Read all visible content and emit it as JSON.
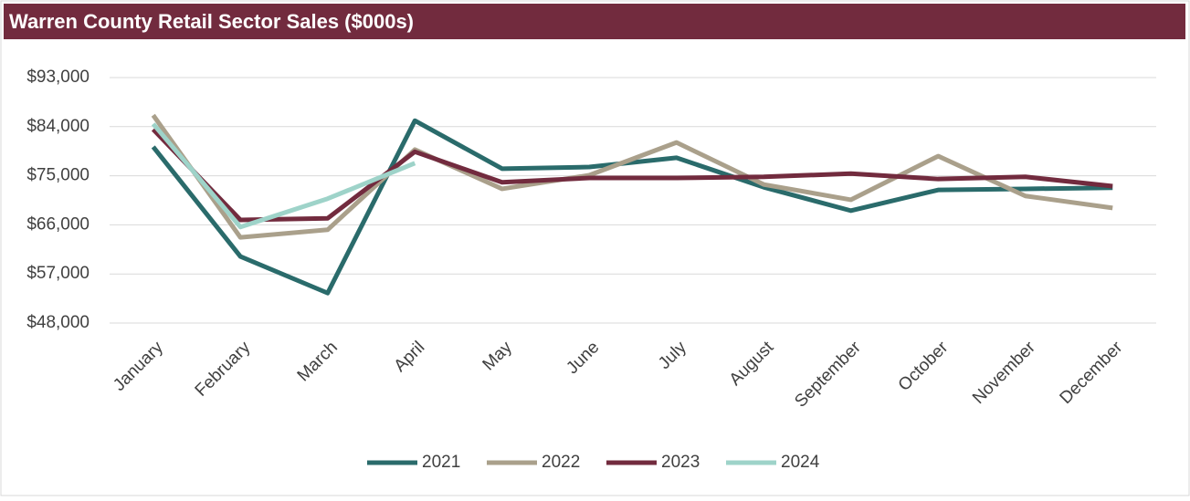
{
  "chart_data": {
    "type": "line",
    "title": "Warren County Retail Sector Sales ($000s)",
    "categories": [
      "January",
      "February",
      "March",
      "April",
      "May",
      "June",
      "July",
      "August",
      "September",
      "October",
      "November",
      "December"
    ],
    "series": [
      {
        "name": "2021",
        "color": "#2a6b6b",
        "values": [
          80300,
          60200,
          53500,
          85100,
          76300,
          76600,
          78300,
          72900,
          68600,
          72400,
          72600,
          72800
        ]
      },
      {
        "name": "2022",
        "color": "#aaa08b",
        "values": [
          86100,
          63700,
          65100,
          79800,
          72600,
          75100,
          81100,
          73400,
          70600,
          78600,
          71300,
          69100
        ]
      },
      {
        "name": "2023",
        "color": "#722b3e",
        "values": [
          83500,
          66900,
          67200,
          79400,
          73800,
          74600,
          74600,
          74800,
          75400,
          74400,
          74800,
          73100
        ]
      },
      {
        "name": "2024",
        "color": "#9ed3c9",
        "values": [
          84500,
          65600,
          70800,
          77300,
          null,
          null,
          null,
          null,
          null,
          null,
          null,
          null
        ]
      }
    ],
    "ylim": [
      48000,
      93000
    ],
    "yticks": [
      {
        "value": 48000,
        "label": "$48,000"
      },
      {
        "value": 57000,
        "label": "$57,000"
      },
      {
        "value": 66000,
        "label": "$66,000"
      },
      {
        "value": 75000,
        "label": "$75,000"
      },
      {
        "value": 84000,
        "label": "$84,000"
      },
      {
        "value": 93000,
        "label": "$93,000"
      }
    ],
    "grid": true,
    "legend": "bottom"
  }
}
